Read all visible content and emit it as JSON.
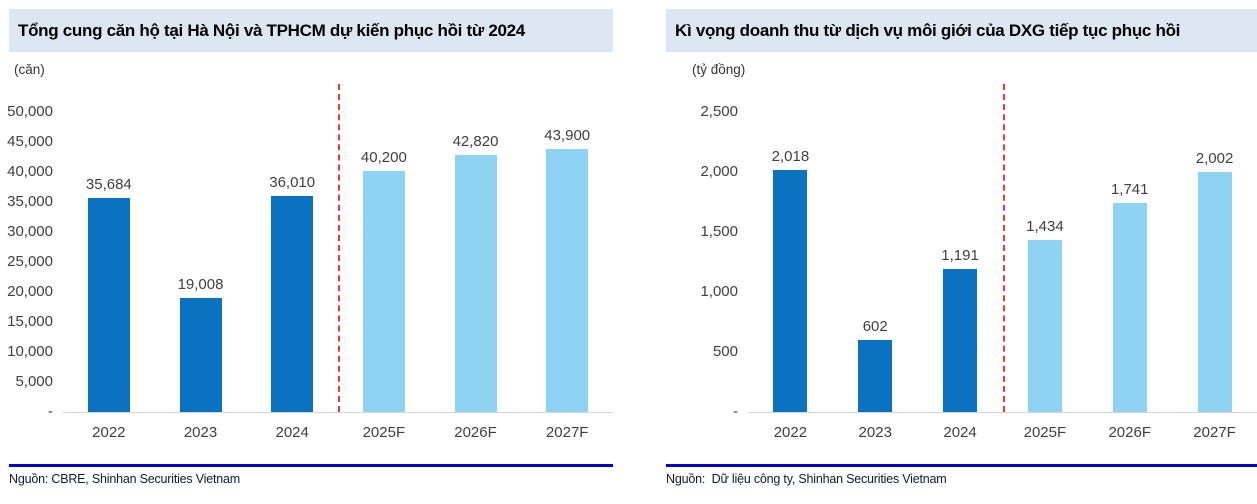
{
  "colors": {
    "title_bar_bg": "#dce7f3",
    "actual_bar_blue": "#0b72c2",
    "forecast_bar_blue": "#8fd3f3",
    "divider_red": "#ea3b34",
    "rule_blue": "#0000d0",
    "axis_text": "#404040",
    "source_text": "#111b33"
  },
  "chart_data": [
    {
      "type": "bar",
      "title": "Tổng cung căn hộ tại Hà Nội và TPHCM dự kiến phục hồi từ 2024",
      "unit_label": "(căn)",
      "categories": [
        "2022",
        "2023",
        "2024",
        "2025F",
        "2026F",
        "2027F"
      ],
      "values": [
        35684,
        19008,
        36010,
        40200,
        42820,
        43900
      ],
      "value_labels": [
        "35,684",
        "19,008",
        "36,010",
        "40,200",
        "42,820",
        "43,900"
      ],
      "ylim": [
        0,
        50000
      ],
      "ytick_values": [
        50000,
        45000,
        40000,
        35000,
        30000,
        25000,
        20000,
        15000,
        10000,
        5000,
        0
      ],
      "ytick_labels": [
        "50,000",
        "45,000",
        "40,000",
        "35,000",
        "30,000",
        "25,000",
        "20,000",
        "15,000",
        "10,000",
        "5,000",
        "-"
      ],
      "grid": false,
      "legend": null,
      "actual_color": "#0b72c2",
      "forecast_color": "#8fd3f3",
      "forecast_start_index": 3,
      "divider_after_index": 2,
      "divider_color": "#ea3b34",
      "source": "Nguồn: CBRE, Shinhan Securities Vietnam"
    },
    {
      "type": "bar",
      "title": "Kì vọng doanh thu từ dịch vụ môi giới của DXG tiếp tục phục hồi",
      "unit_label": "(tỷ đồng)",
      "categories": [
        "2022",
        "2023",
        "2024",
        "2025F",
        "2026F",
        "2027F"
      ],
      "values": [
        2018,
        602,
        1191,
        1434,
        1741,
        2002
      ],
      "value_labels": [
        "2,018",
        "602",
        "1,191",
        "1,434",
        "1,741",
        "2,002"
      ],
      "ylim": [
        0,
        2500
      ],
      "ytick_values": [
        2500,
        2000,
        1500,
        1000,
        500,
        0
      ],
      "ytick_labels": [
        "2,500",
        "2,000",
        "1,500",
        "1,000",
        "500",
        "-"
      ],
      "grid": false,
      "legend": null,
      "actual_color": "#0b72c2",
      "forecast_color": "#8fd3f3",
      "forecast_start_index": 3,
      "divider_after_index": 2,
      "divider_color": "#ea3b34",
      "source": "Nguồn:  Dữ liệu công ty, Shinhan Securities Vietnam"
    }
  ]
}
